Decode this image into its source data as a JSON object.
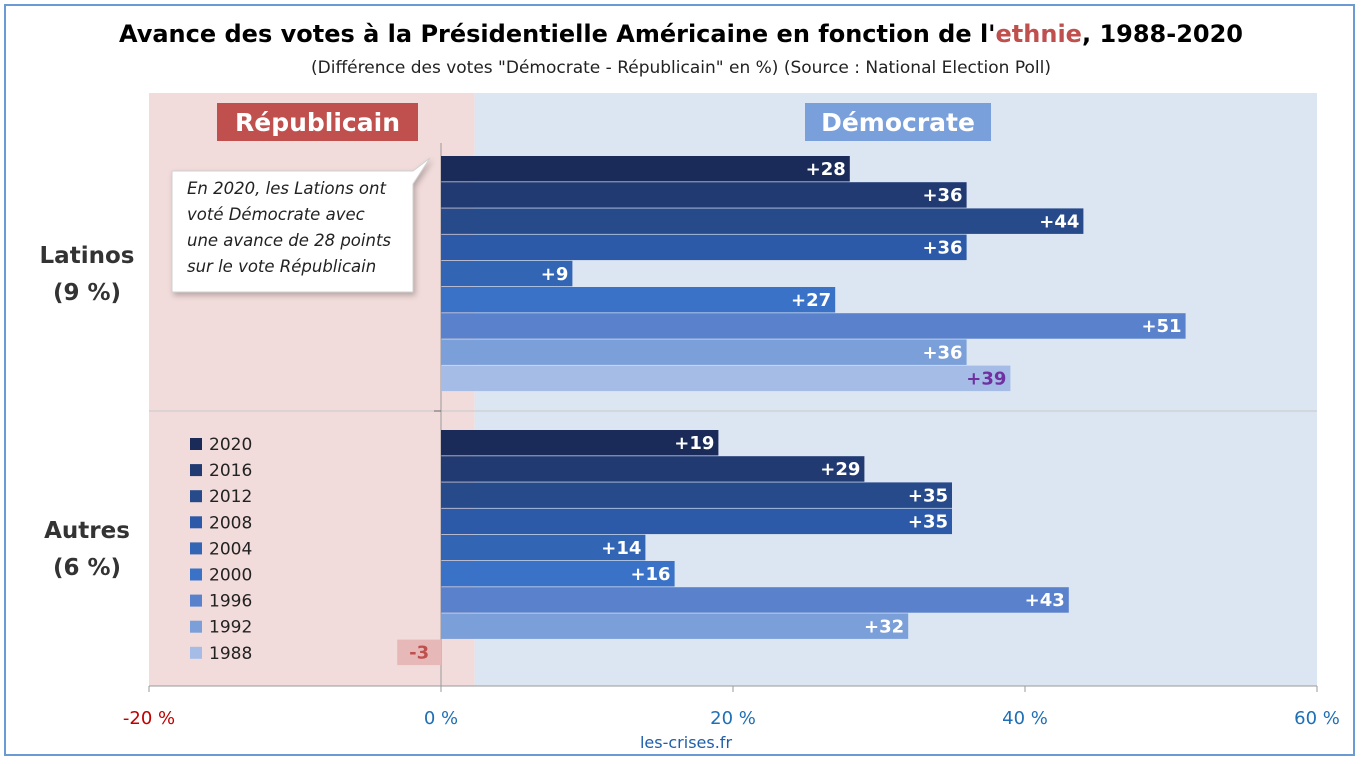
{
  "header": {
    "title_part1": "Avance des votes à la Présidentielle Américaine en fonction de l'",
    "title_highlight": "ethnie",
    "title_part2": ", 1988-2020",
    "subtitle": "(Différence des votes \"Démocrate - Républicain\" en %) (Source : National Election Poll)"
  },
  "zones": {
    "republican_label": "Républicain",
    "democrat_label": "Démocrate"
  },
  "annotation": {
    "lines": [
      "En 2020, les Lations ont",
      "voté Démocrate avec",
      "une avance de 28 points",
      "sur le vote Républicain"
    ]
  },
  "footer": {
    "source": "les-crises.fr"
  },
  "colors": {
    "title_highlight": "#c0504d",
    "republican_zone": "#f2dcdb",
    "democrat_zone": "#dce6f2",
    "republican_box": "#c0504d",
    "democrat_box": "#7aa0dc",
    "negative_label_bg": "#e6b9b8",
    "negative_label_text": "#c0504d",
    "last_label_text": "#7030a0",
    "year_colors": [
      "#1a2b5a",
      "#213a72",
      "#274a8a",
      "#2c5aa8",
      "#3266b4",
      "#3a72c8",
      "#5a82cc",
      "#7b9fd8",
      "#a4bce6"
    ]
  },
  "chart_data": {
    "type": "bar",
    "orientation": "horizontal",
    "xlim": [
      -20,
      60
    ],
    "xticks": [
      -20,
      0,
      20,
      40,
      60
    ],
    "xtick_labels": [
      "-20 %",
      "0 %",
      "20 %",
      "40 %",
      "60 %"
    ],
    "groups": [
      {
        "name": "Latinos",
        "share": "(9 %)"
      },
      {
        "name": "Autres",
        "share": "(6 %)"
      }
    ],
    "series": [
      {
        "name": "2020",
        "values": [
          28,
          19
        ]
      },
      {
        "name": "2016",
        "values": [
          36,
          29
        ]
      },
      {
        "name": "2012",
        "values": [
          44,
          35
        ]
      },
      {
        "name": "2008",
        "values": [
          36,
          35
        ]
      },
      {
        "name": "2004",
        "values": [
          9,
          14
        ]
      },
      {
        "name": "2000",
        "values": [
          27,
          16
        ]
      },
      {
        "name": "1996",
        "values": [
          51,
          43
        ]
      },
      {
        "name": "1992",
        "values": [
          36,
          32
        ]
      },
      {
        "name": "1988",
        "values": [
          39,
          -3
        ]
      }
    ],
    "data_labels": [
      [
        "+28",
        "+36",
        "+44",
        "+36",
        "+9",
        "+27",
        "+51",
        "+36",
        "+39"
      ],
      [
        "+19",
        "+29",
        "+35",
        "+35",
        "+14",
        "+16",
        "+43",
        "+32",
        "-3"
      ]
    ],
    "legend_placement": "bottom-left"
  }
}
